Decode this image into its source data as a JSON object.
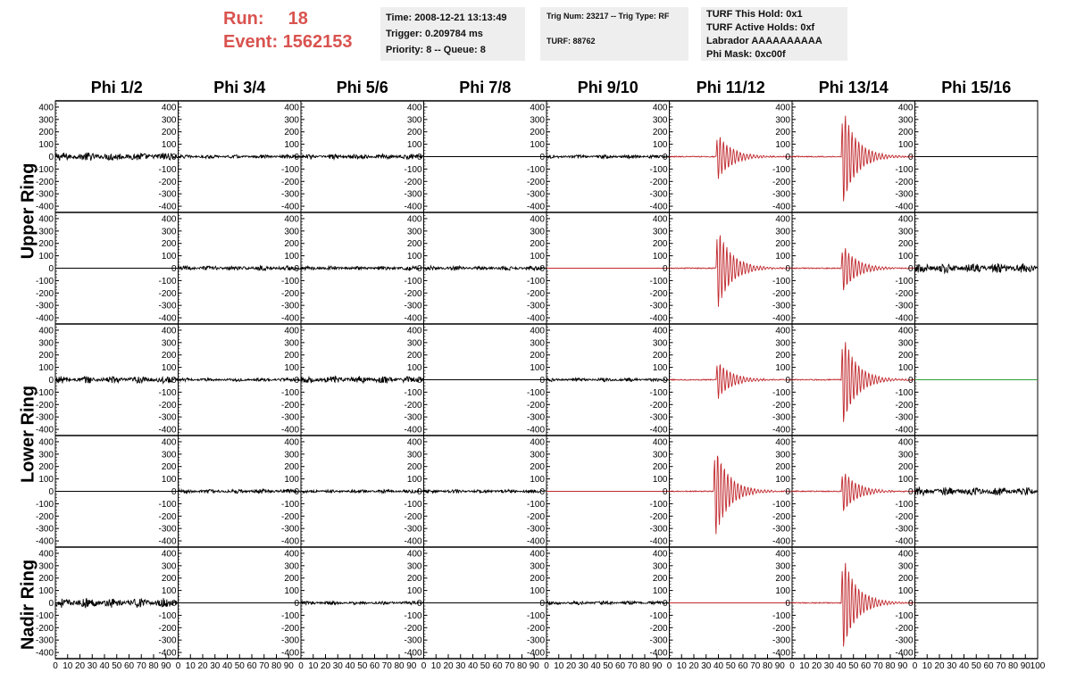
{
  "header": {
    "run_label": "Run:",
    "run_value": "18",
    "event_label": "Event:",
    "event_value": "1562153",
    "time": "Time: 2008-12-21 13:13:49",
    "trigger": "Trigger: 0.209784 ms",
    "priority": "Priority: 8 -- Queue: 8",
    "trig_num": "Trig Num: 23217 -- Trig Type: RF",
    "turf": "TURF: 88762",
    "turf_this_hold": "TURF This Hold: 0x1",
    "turf_active_holds": "TURF Active Holds: 0xf",
    "labrador": "Labrador AAAAAAAAAA",
    "phi_mask": "Phi Mask: 0xc00f"
  },
  "ring_labels": [
    "Upper Ring",
    "Lower Ring",
    "Nadir Ring"
  ],
  "chart_data": {
    "type": "line",
    "columns": [
      "Phi 1/2",
      "Phi 3/4",
      "Phi 5/6",
      "Phi 7/8",
      "Phi 9/10",
      "Phi 11/12",
      "Phi 13/14",
      "Phi 15/16"
    ],
    "rows": 5,
    "xlim": [
      0,
      100
    ],
    "ylim": [
      -450,
      450
    ],
    "x_ticks": [
      0,
      10,
      20,
      30,
      40,
      50,
      60,
      70,
      80,
      90,
      100
    ],
    "y_ticks": [
      -400,
      -300,
      -200,
      -100,
      0,
      100,
      200,
      300,
      400
    ],
    "colors": {
      "normal": "#000000",
      "triggered": "#c0282d",
      "masked": "#2e9e3a"
    },
    "panels": [
      [
        "noise",
        "noise",
        "noise",
        "flat",
        "noise",
        "pulse",
        "pulse",
        "flat"
      ],
      [
        "flat",
        "noise",
        "noise",
        "noise",
        "flat",
        "pulse",
        "pulse",
        "noise"
      ],
      [
        "noise",
        "noise",
        "noise",
        "flat",
        "noise",
        "pulse",
        "pulse",
        "flat"
      ],
      [
        "flat",
        "noise",
        "noise",
        "noise",
        "flat",
        "pulse",
        "pulse",
        "noise"
      ],
      [
        "noise",
        "flat",
        "noise",
        "flat",
        "noise",
        "flat",
        "pulse",
        "flat"
      ]
    ],
    "panel_colors": [
      [
        "normal",
        "normal",
        "normal",
        "normal",
        "normal",
        "triggered",
        "triggered",
        "normal"
      ],
      [
        "normal",
        "normal",
        "normal",
        "normal",
        "triggered",
        "triggered",
        "triggered",
        "normal"
      ],
      [
        "normal",
        "normal",
        "normal",
        "normal",
        "normal",
        "triggered",
        "triggered",
        "masked"
      ],
      [
        "normal",
        "normal",
        "normal",
        "normal",
        "triggered",
        "triggered",
        "triggered",
        "normal"
      ],
      [
        "normal",
        "normal",
        "normal",
        "normal",
        "normal",
        "triggered",
        "triggered",
        "normal"
      ]
    ],
    "pulse_peak": [
      [
        0,
        0,
        0,
        0,
        0,
        220,
        450,
        0
      ],
      [
        0,
        0,
        0,
        0,
        0,
        380,
        220,
        0
      ],
      [
        0,
        0,
        0,
        0,
        0,
        180,
        420,
        0
      ],
      [
        0,
        0,
        0,
        0,
        0,
        420,
        200,
        0
      ],
      [
        0,
        0,
        0,
        0,
        0,
        0,
        440,
        0
      ]
    ],
    "pulse_start": [
      [
        0,
        0,
        0,
        0,
        0,
        38,
        40,
        0
      ],
      [
        0,
        0,
        0,
        0,
        0,
        38,
        40,
        0
      ],
      [
        0,
        0,
        0,
        0,
        0,
        38,
        40,
        0
      ],
      [
        0,
        0,
        0,
        0,
        0,
        36,
        40,
        0
      ],
      [
        0,
        0,
        0,
        0,
        0,
        0,
        40,
        0
      ]
    ],
    "noise_amp": [
      [
        35,
        15,
        22,
        0,
        15,
        0,
        0,
        0
      ],
      [
        0,
        20,
        18,
        18,
        0,
        0,
        0,
        40
      ],
      [
        30,
        15,
        30,
        0,
        15,
        0,
        0,
        0
      ],
      [
        0,
        18,
        15,
        15,
        0,
        0,
        0,
        35
      ],
      [
        40,
        0,
        15,
        0,
        15,
        0,
        0,
        0
      ]
    ]
  }
}
